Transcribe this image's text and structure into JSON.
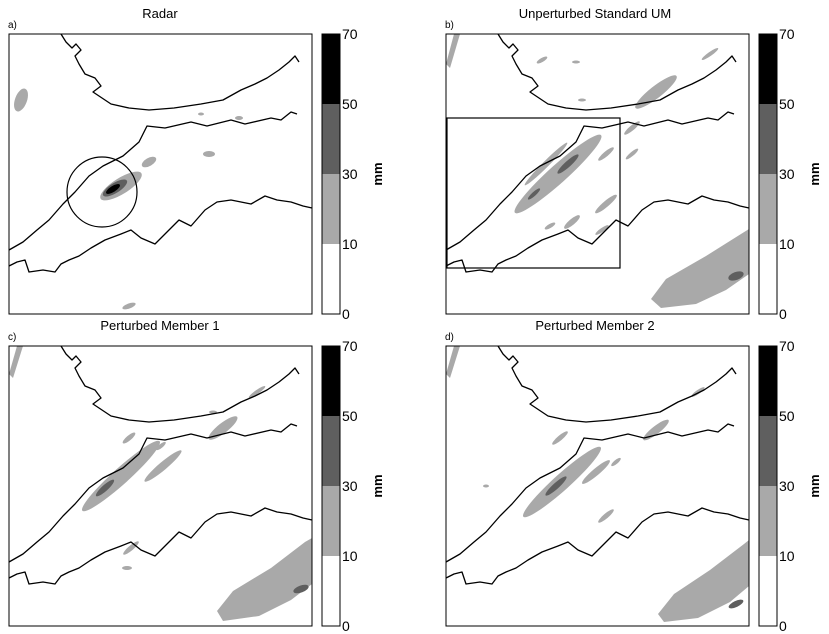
{
  "panels": [
    {
      "letter": "a)",
      "title": "Radar"
    },
    {
      "letter": "b)",
      "title": "Unperturbed Standard UM"
    },
    {
      "letter": "c)",
      "title": "Perturbed Member 1"
    },
    {
      "letter": "d)",
      "title": "Perturbed Member 2"
    }
  ],
  "colorbar": {
    "unit": "mm",
    "ticks": [
      "0",
      "10",
      "30",
      "50",
      "70"
    ],
    "levels": [
      {
        "range": "0-10",
        "color": "#ffffff"
      },
      {
        "range": "10-30",
        "color": "#a9a9a9"
      },
      {
        "range": "30-50",
        "color": "#5f5f5f"
      },
      {
        "range": "50-70",
        "color": "#000000"
      }
    ]
  }
}
